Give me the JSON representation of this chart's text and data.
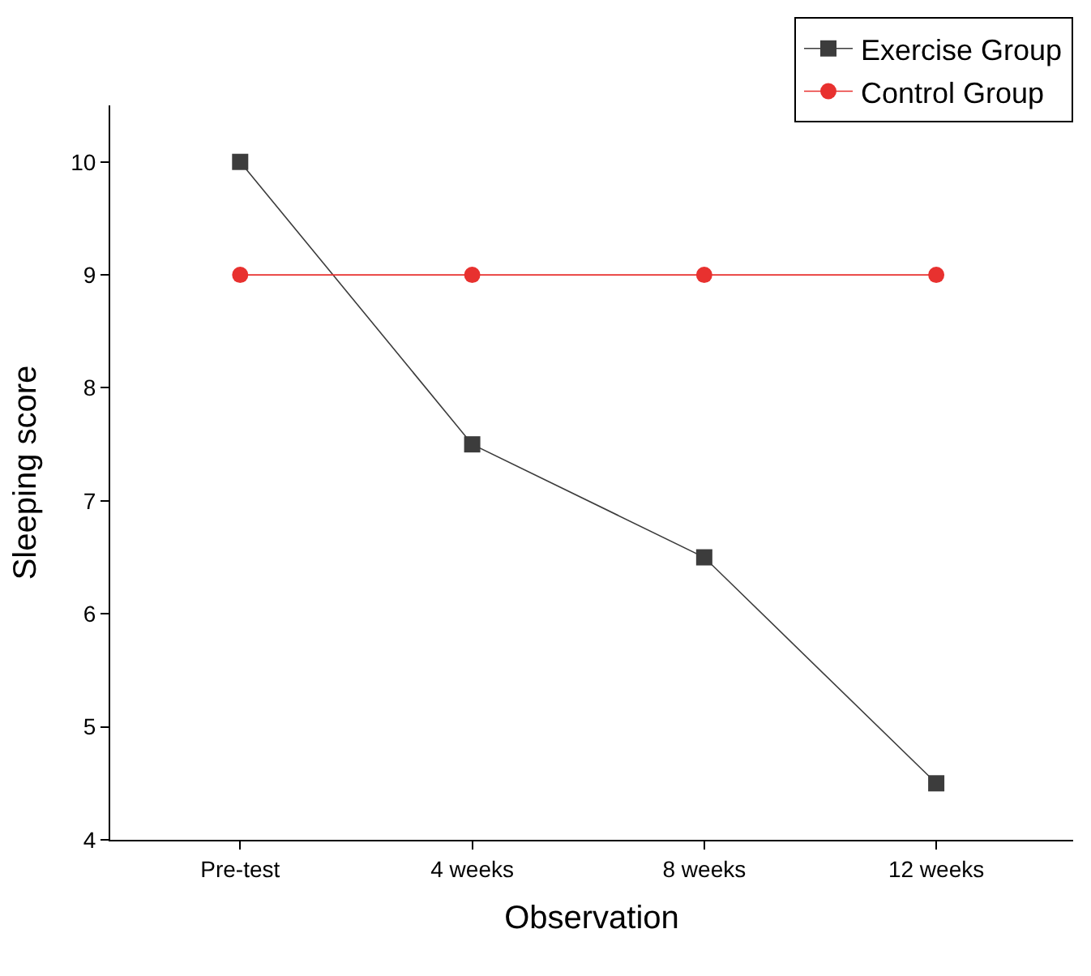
{
  "chart_data": {
    "type": "line",
    "xlabel": "Observation",
    "ylabel": "Sleeping score",
    "categories": [
      "Pre-test",
      "4 weeks",
      "8 weeks",
      "12 weeks"
    ],
    "series": [
      {
        "name": "Exercise Group",
        "color": "#3c3c3c",
        "marker": "square",
        "values": [
          10,
          7.5,
          6.5,
          4.5
        ]
      },
      {
        "name": "Control Group",
        "color": "#e8312f",
        "marker": "circle",
        "values": [
          9,
          9,
          9,
          9
        ]
      }
    ],
    "ylim": [
      4,
      10.5
    ],
    "yticks": [
      4,
      5,
      6,
      7,
      8,
      9,
      10
    ],
    "legend": "top right",
    "line_style": "solid"
  }
}
